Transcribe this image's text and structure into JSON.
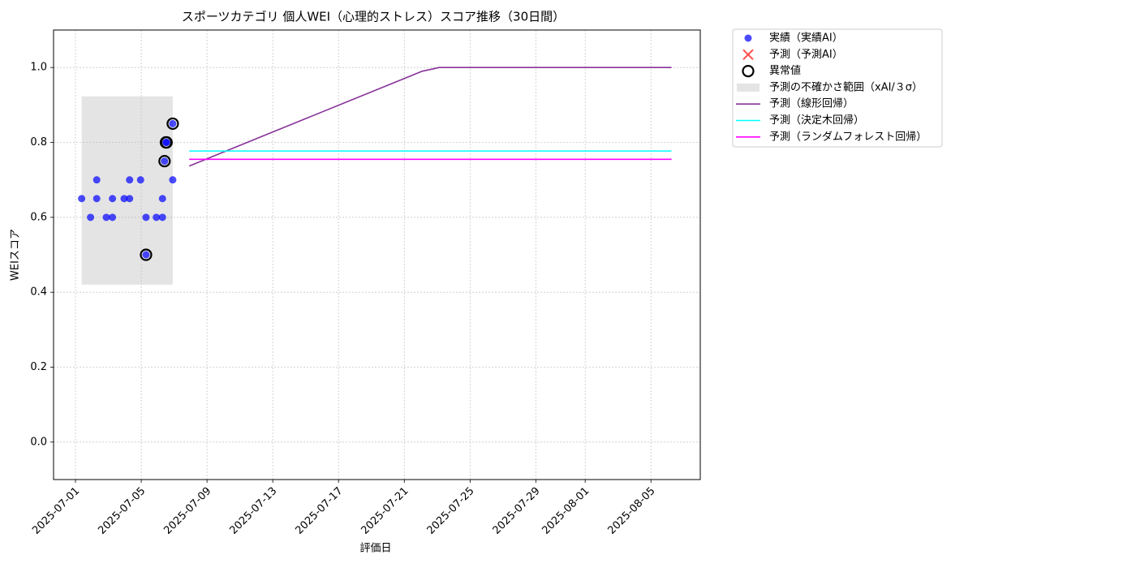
{
  "chart_data": {
    "type": "line",
    "title": "スポーツカテゴリ 個人WEI（心理的ストレス）スコア推移（30日間）",
    "x_label": "評価日",
    "y_label": "WEIスコア",
    "xlim": [
      "2025-06-29T16:00",
      "2025-08-08T00:00"
    ],
    "xticks": [
      "2025-07-01",
      "2025-07-05",
      "2025-07-09",
      "2025-07-13",
      "2025-07-17",
      "2025-07-21",
      "2025-07-25",
      "2025-07-29",
      "2025-08-01",
      "2025-08-05"
    ],
    "ylim": [
      -0.1,
      1.1
    ],
    "yticks": [
      {
        "value": 0,
        "label": "0.0"
      },
      0.2,
      0.4,
      0.6,
      0.8,
      {
        "value": 1,
        "label": "1.0"
      }
    ],
    "grid": true,
    "legend": "outside-right",
    "series": [
      {
        "name": "実績（実績AI）",
        "mark": "scatter",
        "color": "#0000ff",
        "x": [
          "2025-07-01T09:00",
          "2025-07-01T22:00",
          "2025-07-02T07:00",
          "2025-07-02T07:00",
          "2025-07-02T21:00",
          "2025-07-03T06:00",
          "2025-07-03T06:00",
          "2025-07-03T23:00",
          "2025-07-04T07:00",
          "2025-07-04T07:00",
          "2025-07-04T23:00",
          "2025-07-05T07:00",
          "2025-07-05T07:00",
          "2025-07-05T22:00",
          "2025-07-06T07:00",
          "2025-07-06T07:00",
          "2025-07-06T10:00",
          "2025-07-06T13:00",
          "2025-07-06T12:00",
          "2025-07-06T22:00",
          "2025-07-06T22:00"
        ],
        "values": [
          0.65,
          0.6,
          0.7,
          0.65,
          0.6,
          0.6,
          0.65,
          0.65,
          0.65,
          0.7,
          0.7,
          0.6,
          0.5,
          0.6,
          0.6,
          0.65,
          0.75,
          0.8,
          0.8,
          0.85,
          0.7
        ]
      },
      {
        "name": "予測（予測AI）",
        "mark": "cross",
        "color": "#ff0000",
        "x": [],
        "values": []
      },
      {
        "name": "異常値",
        "mark": "ring",
        "color": "#000000",
        "x": [
          "2025-07-05T07:00",
          "2025-07-06T10:00",
          "2025-07-06T12:00",
          "2025-07-06T13:00",
          "2025-07-06T22:00"
        ],
        "values": [
          0.5,
          0.75,
          0.8,
          0.8,
          0.85
        ]
      },
      {
        "name": "予測の不確かさ範囲（xAI/３σ）",
        "mark": "band",
        "color": "#bbbbbb",
        "x": [
          "2025-07-01T09:00",
          "2025-07-06T22:00"
        ],
        "lower": [
          0.42,
          0.42
        ],
        "upper": [
          0.923,
          0.923
        ]
      },
      {
        "name": "予測（線形回帰）",
        "mark": "line",
        "color": "#883399",
        "x": [
          "2025-07-07T22:00",
          "2025-07-22T02:00",
          "2025-07-23T03:00",
          "2025-08-06T06:00"
        ],
        "values": [
          0.737,
          0.99,
          1.0,
          1.0
        ]
      },
      {
        "name": "予測（決定木回帰）",
        "mark": "line",
        "color": "#00ffff",
        "x": [
          "2025-07-07T22:00",
          "2025-08-06T06:00"
        ],
        "values": [
          0.777,
          0.777
        ]
      },
      {
        "name": "予測（ランダムフォレスト回帰）",
        "mark": "line",
        "color": "#ff00ff",
        "x": [
          "2025-07-07T22:00",
          "2025-08-06T06:00"
        ],
        "values": [
          0.755,
          0.755
        ]
      }
    ]
  }
}
